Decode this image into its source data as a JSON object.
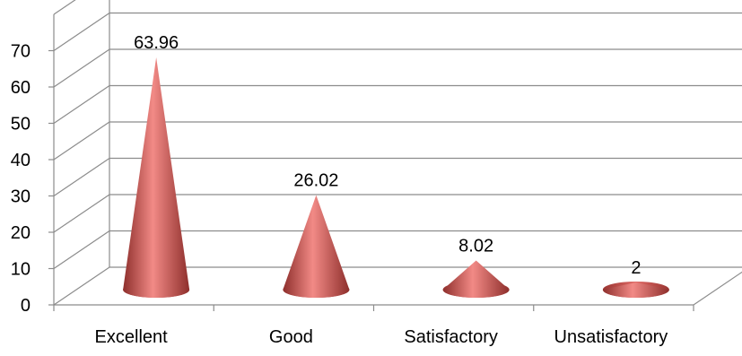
{
  "chart_data": {
    "type": "bar",
    "style": "3d-cone",
    "title": "",
    "xlabel": "",
    "ylabel": "",
    "categories": [
      "Excellent",
      "Good",
      "Satisfactory",
      "Unsatisfactory"
    ],
    "values": [
      63.96,
      26.02,
      8.02,
      2
    ],
    "data_labels": [
      "63.96",
      "26.02",
      "8.02",
      "2"
    ],
    "y_ticks": [
      "0",
      "10",
      "20",
      "30",
      "40",
      "50",
      "60",
      "70"
    ],
    "ylim": [
      0,
      80
    ],
    "grid": true,
    "legend": "none",
    "colors": {
      "bar": "#c0504d",
      "bar_dark": "#8e2f2c",
      "bar_light": "#f28a86",
      "gridline": "#8c8c8c"
    }
  }
}
